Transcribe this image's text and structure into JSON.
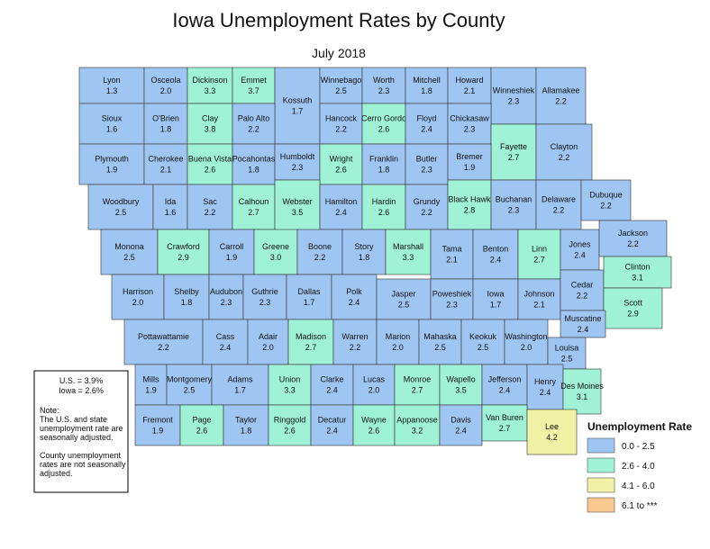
{
  "title": "Iowa Unemployment Rates by County",
  "subtitle": "July 2018",
  "summary": [
    "U.S. = 3.9%",
    "Iowa = 2.6%"
  ],
  "note": [
    "Note:",
    "The U.S. and state",
    "unemployment rate are",
    "seasonally adjusted.",
    "",
    "County unemployment",
    "rates are not seasonally",
    "adjusted."
  ],
  "legend": {
    "title": "Unemployment Rate",
    "items": [
      {
        "label": "0.0 - 2.5",
        "color": "#9fc6f2"
      },
      {
        "label": "2.6 - 4.0",
        "color": "#9ff2d6"
      },
      {
        "label": "4.1 - 6.0",
        "color": "#f2f2a6"
      },
      {
        "label": "6.1 to ***",
        "color": "#f8c88e"
      }
    ]
  },
  "counties": [
    {
      "name": "Lyon",
      "rate": "1.3"
    },
    {
      "name": "Osceola",
      "rate": "2.0"
    },
    {
      "name": "Dickinson",
      "rate": "3.3"
    },
    {
      "name": "Emmet",
      "rate": "3.7"
    },
    {
      "name": "Kossuth",
      "rate": "1.7"
    },
    {
      "name": "Winnebago",
      "rate": "2.5"
    },
    {
      "name": "Worth",
      "rate": "2.3"
    },
    {
      "name": "Mitchell",
      "rate": "1.8"
    },
    {
      "name": "Howard",
      "rate": "2.1"
    },
    {
      "name": "Winneshiek",
      "rate": "2.3"
    },
    {
      "name": "Allamakee",
      "rate": "2.2"
    },
    {
      "name": "Sioux",
      "rate": "1.6"
    },
    {
      "name": "O'Brien",
      "rate": "1.8"
    },
    {
      "name": "Clay",
      "rate": "3.8"
    },
    {
      "name": "Palo Alto",
      "rate": "2.2"
    },
    {
      "name": "Hancock",
      "rate": "2.2"
    },
    {
      "name": "Cerro Gordo",
      "rate": "2.6"
    },
    {
      "name": "Floyd",
      "rate": "2.4"
    },
    {
      "name": "Chickasaw",
      "rate": "2.3"
    },
    {
      "name": "Fayette",
      "rate": "2.7"
    },
    {
      "name": "Clayton",
      "rate": "2.2"
    },
    {
      "name": "Plymouth",
      "rate": "1.9"
    },
    {
      "name": "Cherokee",
      "rate": "2.1"
    },
    {
      "name": "Buena Vista",
      "rate": "2.6"
    },
    {
      "name": "Pocahontas",
      "rate": "1.8"
    },
    {
      "name": "Humboldt",
      "rate": "2.3"
    },
    {
      "name": "Wright",
      "rate": "2.6"
    },
    {
      "name": "Franklin",
      "rate": "1.8"
    },
    {
      "name": "Butler",
      "rate": "2.3"
    },
    {
      "name": "Bremer",
      "rate": "1.9"
    },
    {
      "name": "Woodbury",
      "rate": "2.5"
    },
    {
      "name": "Ida",
      "rate": "1.6"
    },
    {
      "name": "Sac",
      "rate": "2.2"
    },
    {
      "name": "Calhoun",
      "rate": "2.7"
    },
    {
      "name": "Webster",
      "rate": "3.5"
    },
    {
      "name": "Hamilton",
      "rate": "2.4"
    },
    {
      "name": "Hardin",
      "rate": "2.6"
    },
    {
      "name": "Grundy",
      "rate": "2.2"
    },
    {
      "name": "Black Hawk",
      "rate": "2.8"
    },
    {
      "name": "Buchanan",
      "rate": "2.3"
    },
    {
      "name": "Delaware",
      "rate": "2.2"
    },
    {
      "name": "Dubuque",
      "rate": "2.2"
    },
    {
      "name": "Monona",
      "rate": "2.5"
    },
    {
      "name": "Crawford",
      "rate": "2.9"
    },
    {
      "name": "Carroll",
      "rate": "1.9"
    },
    {
      "name": "Greene",
      "rate": "3.0"
    },
    {
      "name": "Boone",
      "rate": "2.2"
    },
    {
      "name": "Story",
      "rate": "1.8"
    },
    {
      "name": "Marshall",
      "rate": "3.3"
    },
    {
      "name": "Tama",
      "rate": "2.1"
    },
    {
      "name": "Benton",
      "rate": "2.4"
    },
    {
      "name": "Linn",
      "rate": "2.7"
    },
    {
      "name": "Jones",
      "rate": "2.4"
    },
    {
      "name": "Jackson",
      "rate": "2.2"
    },
    {
      "name": "Harrison",
      "rate": "2.0"
    },
    {
      "name": "Shelby",
      "rate": "1.8"
    },
    {
      "name": "Audubon",
      "rate": "2.3"
    },
    {
      "name": "Guthrie",
      "rate": "2.3"
    },
    {
      "name": "Dallas",
      "rate": "1.7"
    },
    {
      "name": "Polk",
      "rate": "2.4"
    },
    {
      "name": "Jasper",
      "rate": "2.5"
    },
    {
      "name": "Poweshiek",
      "rate": "2.3"
    },
    {
      "name": "Iowa",
      "rate": "1.7"
    },
    {
      "name": "Johnson",
      "rate": "2.1"
    },
    {
      "name": "Cedar",
      "rate": "2.2"
    },
    {
      "name": "Clinton",
      "rate": "3.1"
    },
    {
      "name": "Scott",
      "rate": "2.9"
    },
    {
      "name": "Pottawattamie",
      "rate": "2.2"
    },
    {
      "name": "Cass",
      "rate": "2.4"
    },
    {
      "name": "Adair",
      "rate": "2.0"
    },
    {
      "name": "Madison",
      "rate": "2.7"
    },
    {
      "name": "Warren",
      "rate": "2.2"
    },
    {
      "name": "Marion",
      "rate": "2.0"
    },
    {
      "name": "Mahaska",
      "rate": "2.5"
    },
    {
      "name": "Keokuk",
      "rate": "2.5"
    },
    {
      "name": "Washington",
      "rate": "2.0"
    },
    {
      "name": "Muscatine",
      "rate": "2.4"
    },
    {
      "name": "Louisa",
      "rate": "2.5"
    },
    {
      "name": "Mills",
      "rate": "1.9"
    },
    {
      "name": "Montgomery",
      "rate": "2.5"
    },
    {
      "name": "Adams",
      "rate": "1.7"
    },
    {
      "name": "Union",
      "rate": "3.3"
    },
    {
      "name": "Clarke",
      "rate": "2.4"
    },
    {
      "name": "Lucas",
      "rate": "2.0"
    },
    {
      "name": "Monroe",
      "rate": "2.7"
    },
    {
      "name": "Wapello",
      "rate": "3.5"
    },
    {
      "name": "Jefferson",
      "rate": "2.4"
    },
    {
      "name": "Henry",
      "rate": "2.4"
    },
    {
      "name": "Des Moines",
      "rate": "3.1"
    },
    {
      "name": "Fremont",
      "rate": "1.9"
    },
    {
      "name": "Page",
      "rate": "2.6"
    },
    {
      "name": "Taylor",
      "rate": "1.8"
    },
    {
      "name": "Ringgold",
      "rate": "2.6"
    },
    {
      "name": "Decatur",
      "rate": "2.4"
    },
    {
      "name": "Wayne",
      "rate": "2.6"
    },
    {
      "name": "Appanoose",
      "rate": "3.2"
    },
    {
      "name": "Davis",
      "rate": "2.4"
    },
    {
      "name": "Van Buren",
      "rate": "2.7"
    },
    {
      "name": "Lee",
      "rate": "4.2"
    }
  ]
}
